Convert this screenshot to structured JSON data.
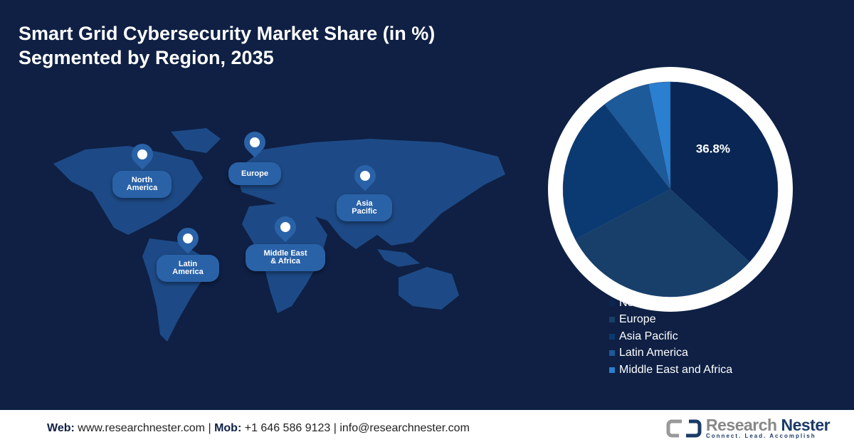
{
  "title": {
    "line1": "Smart Grid Cybersecurity Market Share (in %)",
    "line2": "Segmented by Region, 2035"
  },
  "map_labels": [
    {
      "id": "north-america",
      "line1": "North",
      "line2": "America"
    },
    {
      "id": "europe",
      "line1": "Europe",
      "line2": ""
    },
    {
      "id": "asia-pacific",
      "line1": "Asia",
      "line2": "Pacific"
    },
    {
      "id": "latin-america",
      "line1": "Latin",
      "line2": "America"
    },
    {
      "id": "middle-east-africa",
      "line1": "Middle East",
      "line2": "& Africa"
    }
  ],
  "chart_data": {
    "type": "pie",
    "title": "Smart Grid Cybersecurity Market Share (in %) Segmented by Region, 2035",
    "categories": [
      "North America",
      "Europe",
      "Asia Pacific",
      "Latin America",
      "Middle East and Africa"
    ],
    "values": [
      36.8,
      30.5,
      22.2,
      7.2,
      3.3
    ],
    "data_labels": [
      "36.8%",
      "",
      "",
      "",
      ""
    ],
    "colors": [
      "#0a2654",
      "#173f6a",
      "#0b3a72",
      "#1d5a9a",
      "#2a7fd0"
    ],
    "legend_position": "bottom"
  },
  "footer": {
    "web_label": "Web:",
    "web": "www.researchnester.com",
    "mob_label": "Mob:",
    "mob": "+1 646 586 9123",
    "email": "info@researchnester.com",
    "sep": "|",
    "logo_name1": "Research",
    "logo_name2": "Nester",
    "logo_tagline": "Connect. Lead. Accomplish"
  }
}
